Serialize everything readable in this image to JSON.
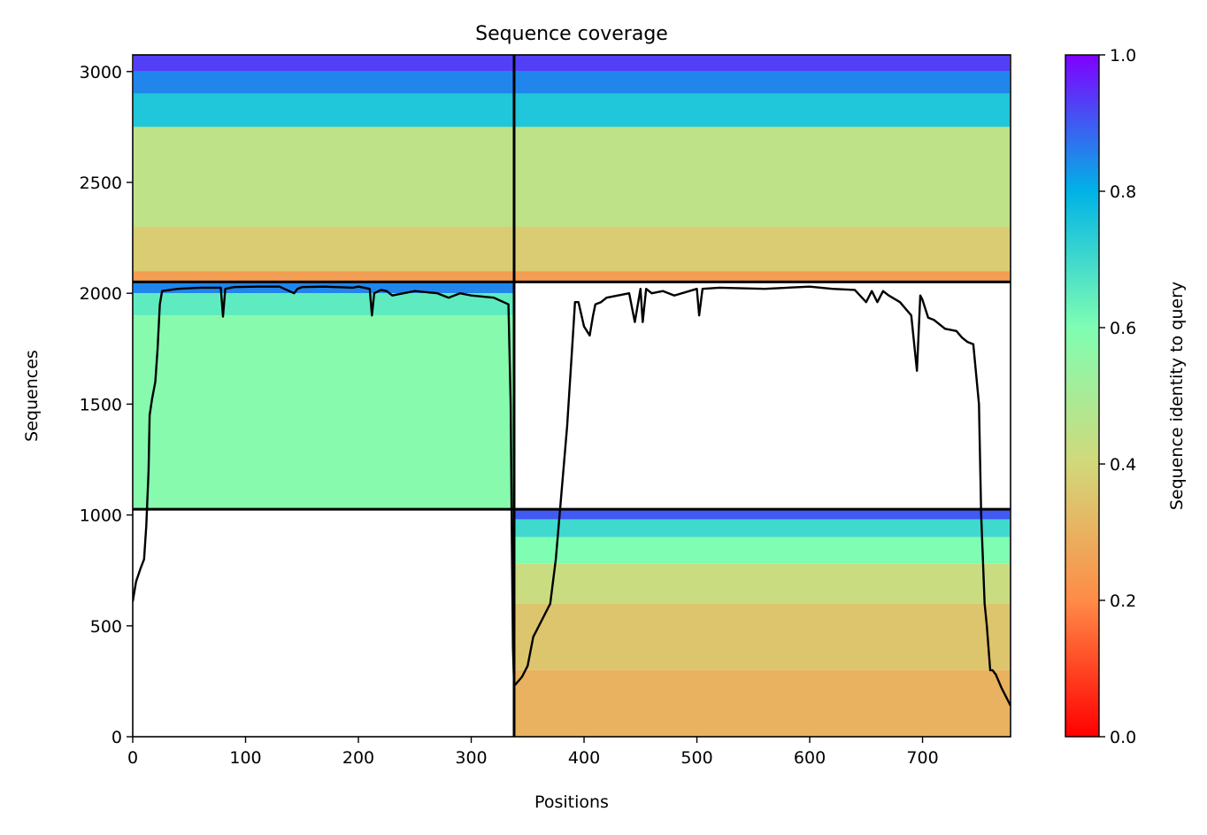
{
  "chart_data": {
    "type": "heatmap",
    "title": "Sequence coverage",
    "xlabel": "Positions",
    "ylabel": "Sequences",
    "xlim": [
      0,
      778
    ],
    "ylim": [
      0,
      3075
    ],
    "xticks": [
      0,
      100,
      200,
      300,
      400,
      500,
      600,
      700
    ],
    "yticks": [
      0,
      500,
      1000,
      1500,
      2000,
      2500,
      3000
    ],
    "colorbar": {
      "label": "Sequence identity to query",
      "range": [
        0,
        1
      ],
      "ticks": [
        "0.0",
        "0.2",
        "0.4",
        "0.6",
        "0.8",
        "1.0"
      ],
      "colormap": "rainbow",
      "stops": [
        "#ff0000",
        "#ff8b47",
        "#d2d87a",
        "#7ffeb3",
        "#00b3e6",
        "#8000ff"
      ]
    },
    "chain_boundaries": {
      "x": [
        338
      ],
      "y": [
        1026,
        2051
      ]
    },
    "blocks": [
      {
        "name": "paired",
        "x_start": 0,
        "x_end": 778,
        "y_start": 2051,
        "y_end": 3075,
        "chain_x_ranges": [
          [
            0,
            338
          ],
          [
            338,
            778
          ]
        ],
        "identity_bands": [
          [
            3075,
            0.93
          ],
          [
            3000,
            0.85
          ],
          [
            2900,
            0.75
          ],
          [
            2750,
            0.45
          ],
          [
            2300,
            0.37
          ],
          [
            2100,
            0.25
          ],
          [
            2051,
            0.25
          ]
        ]
      },
      {
        "name": "chain-1 unpaired",
        "x_start": 0,
        "x_end": 338,
        "y_start": 1026,
        "y_end": 2051,
        "identity_bands": [
          [
            2051,
            0.85
          ],
          [
            2000,
            0.65
          ],
          [
            1900,
            0.58
          ],
          [
            1026,
            0.55
          ]
        ]
      },
      {
        "name": "chain-2 unpaired",
        "x_start": 338,
        "x_end": 778,
        "y_start": 0,
        "y_end": 1026,
        "identity_bands": [
          [
            1026,
            0.9
          ],
          [
            980,
            0.7
          ],
          [
            900,
            0.6
          ],
          [
            780,
            0.42
          ],
          [
            600,
            0.35
          ],
          [
            300,
            0.3
          ],
          [
            0,
            0.28
          ]
        ]
      }
    ],
    "coverage_line": {
      "x": [
        0,
        3,
        7,
        10,
        12,
        14,
        15,
        17,
        20,
        22,
        24,
        26,
        40,
        60,
        78,
        80,
        82,
        90,
        110,
        130,
        143,
        146,
        150,
        170,
        195,
        200,
        210,
        212,
        214,
        220,
        225,
        230,
        250,
        270,
        280,
        290,
        300,
        320,
        333,
        335,
        336,
        337,
        338,
        340,
        345,
        350,
        355,
        360,
        365,
        370,
        375,
        380,
        385,
        390,
        392,
        395,
        400,
        405,
        408,
        410,
        415,
        420,
        430,
        440,
        445,
        450,
        452,
        455,
        460,
        470,
        480,
        500,
        502,
        505,
        520,
        560,
        600,
        620,
        640,
        650,
        655,
        660,
        665,
        670,
        680,
        690,
        695,
        698,
        700,
        705,
        710,
        720,
        730,
        735,
        740,
        745,
        750,
        752,
        755,
        757,
        760,
        762,
        765,
        770,
        775,
        778
      ],
      "y": [
        610,
        700,
        760,
        800,
        950,
        1200,
        1450,
        1520,
        1600,
        1750,
        1950,
        2010,
        2020,
        2025,
        2025,
        1895,
        2020,
        2028,
        2030,
        2030,
        2000,
        2020,
        2028,
        2030,
        2025,
        2030,
        2020,
        1900,
        2000,
        2015,
        2010,
        1990,
        2010,
        2000,
        1980,
        2000,
        1990,
        1980,
        1950,
        1500,
        900,
        400,
        230,
        240,
        270,
        320,
        450,
        500,
        550,
        600,
        800,
        1100,
        1400,
        1800,
        1960,
        1960,
        1850,
        1810,
        1900,
        1950,
        1960,
        1980,
        1990,
        2000,
        1870,
        2020,
        1870,
        2020,
        2000,
        2010,
        1990,
        2020,
        1900,
        2020,
        2025,
        2020,
        2030,
        2020,
        2015,
        1960,
        2010,
        1960,
        2010,
        1990,
        1960,
        1900,
        1650,
        1990,
        1970,
        1890,
        1880,
        1840,
        1830,
        1800,
        1780,
        1770,
        1500,
        1000,
        600,
        500,
        300,
        300,
        280,
        220,
        170,
        140
      ]
    }
  }
}
